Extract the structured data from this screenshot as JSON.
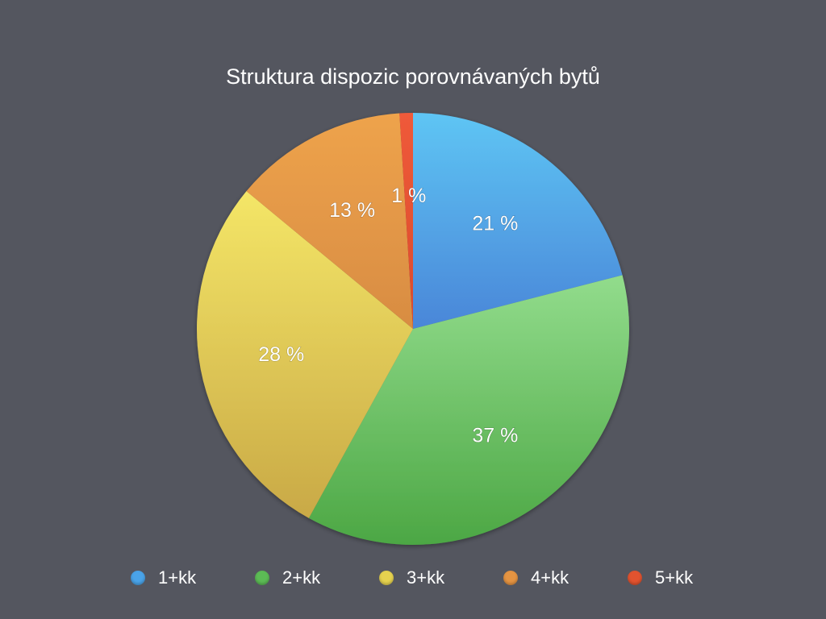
{
  "chart_data": {
    "type": "pie",
    "title": "Struktura dispozic porovnávaných bytů",
    "categories": [
      "1+kk",
      "2+kk",
      "3+kk",
      "4+kk",
      "5+kk"
    ],
    "values": [
      21,
      37,
      28,
      13,
      1
    ],
    "labels": [
      "21 %",
      "37 %",
      "28 %",
      "13 %",
      "1 %"
    ],
    "unit": "%",
    "colors": [
      [
        "#5ec5f4",
        "#4a86d8"
      ],
      [
        "#92dc8c",
        "#4ca744"
      ],
      [
        "#f4e667",
        "#c9a946"
      ],
      [
        "#eea34c",
        "#d88c42"
      ],
      [
        "#ef5a3a",
        "#db4a2c"
      ]
    ],
    "legend_colors": [
      "#4aa3e8",
      "#5cbb55",
      "#e6d24f",
      "#e59442",
      "#e2532f"
    ],
    "legend_position": "bottom",
    "start": "top",
    "direction": "clockwise"
  }
}
